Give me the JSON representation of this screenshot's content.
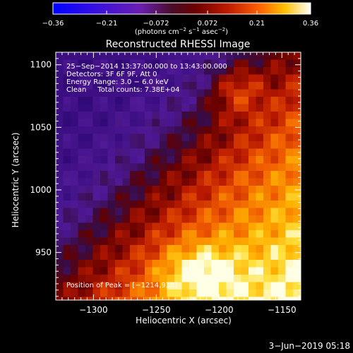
{
  "chart_data": {
    "type": "heatmap",
    "title": "Reconstructed RHESSI Image",
    "xlabel": "Heliocentric X (arcsec)",
    "ylabel": "Heliocentric Y (arcsec)",
    "xlim": [
      -1330,
      -1135
    ],
    "ylim": [
      912,
      1110
    ],
    "x_ticks": [
      -1300,
      -1250,
      -1200,
      -1150
    ],
    "x_tick_labels": [
      "−1300",
      "−1250",
      "−1200",
      "−1150"
    ],
    "y_ticks": [
      950,
      1000,
      1050,
      1100
    ],
    "y_tick_labels": [
      "950",
      "1000",
      "1050",
      "1100"
    ],
    "colorbar": {
      "range": [
        -0.36,
        0.36
      ],
      "ticks": [
        -0.36,
        -0.21,
        -0.072,
        0.072,
        0.21,
        0.36
      ],
      "tick_labels": [
        "−0.36",
        "−0.21",
        "−0.072",
        "0.072",
        "0.21",
        "0.36"
      ],
      "unit_main": "(photons cm",
      "unit_exp1": "−2",
      "unit_mid": " s",
      "unit_exp2": "−1",
      "unit_mid2": " asec",
      "unit_exp3": "−2",
      "unit_close": ")"
    },
    "annotations": [
      "25−Sep−2014 13:37:00.000 to 13:43:00.000",
      "Detectors: 3F 6F 9F, Att 0",
      "Energy Range: 3.0 − 6.0 keV",
      "Clean     Total counts: 7.38E+04"
    ],
    "peak_label": "Position of Peak = [−1214,938]",
    "peak": {
      "x": -1214,
      "y": 938
    }
  },
  "footer": {
    "date": "3−Jun−2019 05:18"
  }
}
